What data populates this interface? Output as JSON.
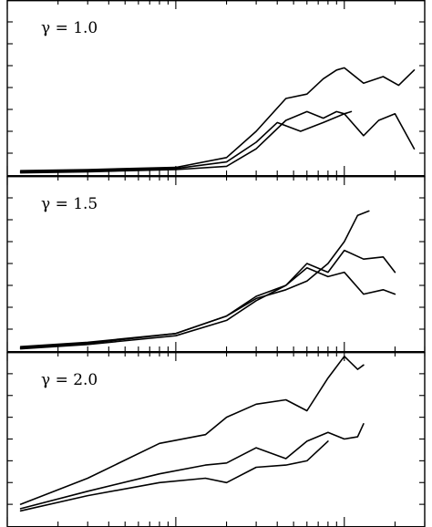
{
  "chart_data": {
    "type": "line",
    "x_scale": "log",
    "xlim": [
      0.01,
      3
    ],
    "ylim": [
      0,
      8
    ],
    "y_tick_labels": "none printed",
    "x_tick_labels": "none printed",
    "panels": [
      {
        "title": "γ = 1.0",
        "series": [
          {
            "x": [
              0.012,
              0.03,
              0.1,
              0.2,
              0.3,
              0.45,
              0.6,
              0.75,
              0.9,
              1.0,
              1.3,
              1.7,
              2.1,
              2.6
            ],
            "y": [
              0.2,
              0.25,
              0.35,
              0.8,
              2.0,
              3.5,
              3.7,
              4.4,
              4.8,
              4.9,
              4.2,
              4.5,
              4.1,
              4.8
            ]
          },
          {
            "x": [
              0.012,
              0.03,
              0.1,
              0.2,
              0.3,
              0.4,
              0.55,
              0.75,
              1.0,
              1.3,
              1.6,
              2.0,
              2.6
            ],
            "y": [
              0.15,
              0.2,
              0.3,
              0.6,
              1.5,
              2.4,
              2.0,
              2.4,
              2.8,
              1.8,
              2.5,
              2.8,
              1.2
            ]
          },
          {
            "x": [
              0.012,
              0.03,
              0.1,
              0.2,
              0.3,
              0.45,
              0.6,
              0.75,
              0.9,
              1.0,
              1.1
            ],
            "y": [
              0.1,
              0.15,
              0.25,
              0.4,
              1.2,
              2.5,
              2.9,
              2.6,
              2.9,
              2.8,
              2.9
            ]
          }
        ]
      },
      {
        "title": "γ = 1.5",
        "series": [
          {
            "x": [
              0.012,
              0.03,
              0.1,
              0.2,
              0.3,
              0.45,
              0.6,
              0.8,
              1.0,
              1.2,
              1.4
            ],
            "y": [
              0.2,
              0.4,
              0.8,
              1.6,
              2.4,
              2.8,
              3.2,
              4.0,
              5.0,
              6.2,
              6.4
            ]
          },
          {
            "x": [
              0.012,
              0.03,
              0.1,
              0.2,
              0.3,
              0.45,
              0.6,
              0.8,
              1.0,
              1.3,
              1.7,
              2.0
            ],
            "y": [
              0.15,
              0.35,
              0.8,
              1.6,
              2.5,
              3.0,
              4.0,
              3.6,
              4.6,
              4.2,
              4.3,
              3.6
            ]
          },
          {
            "x": [
              0.012,
              0.03,
              0.1,
              0.2,
              0.3,
              0.45,
              0.6,
              0.8,
              1.0,
              1.3,
              1.7,
              2.0
            ],
            "y": [
              0.1,
              0.3,
              0.7,
              1.4,
              2.3,
              3.0,
              3.8,
              3.4,
              3.6,
              2.6,
              2.8,
              2.6
            ]
          }
        ]
      },
      {
        "title": "γ = 2.0",
        "series": [
          {
            "x": [
              0.012,
              0.03,
              0.08,
              0.15,
              0.2,
              0.3,
              0.45,
              0.6,
              0.8,
              1.0,
              1.2,
              1.3
            ],
            "y": [
              1.0,
              2.2,
              3.8,
              4.2,
              5.0,
              5.6,
              5.8,
              5.3,
              6.8,
              7.8,
              7.2,
              7.4
            ]
          },
          {
            "x": [
              0.012,
              0.03,
              0.08,
              0.15,
              0.2,
              0.3,
              0.45,
              0.6,
              0.8,
              1.0,
              1.2,
              1.3
            ],
            "y": [
              0.8,
              1.6,
              2.4,
              2.8,
              2.9,
              3.6,
              3.1,
              3.9,
              4.3,
              4.0,
              4.1,
              4.7
            ]
          },
          {
            "x": [
              0.012,
              0.03,
              0.08,
              0.15,
              0.2,
              0.3,
              0.45,
              0.6,
              0.8
            ],
            "y": [
              0.7,
              1.4,
              2.0,
              2.2,
              2.0,
              2.7,
              2.8,
              3.0,
              3.9
            ]
          }
        ]
      }
    ]
  }
}
